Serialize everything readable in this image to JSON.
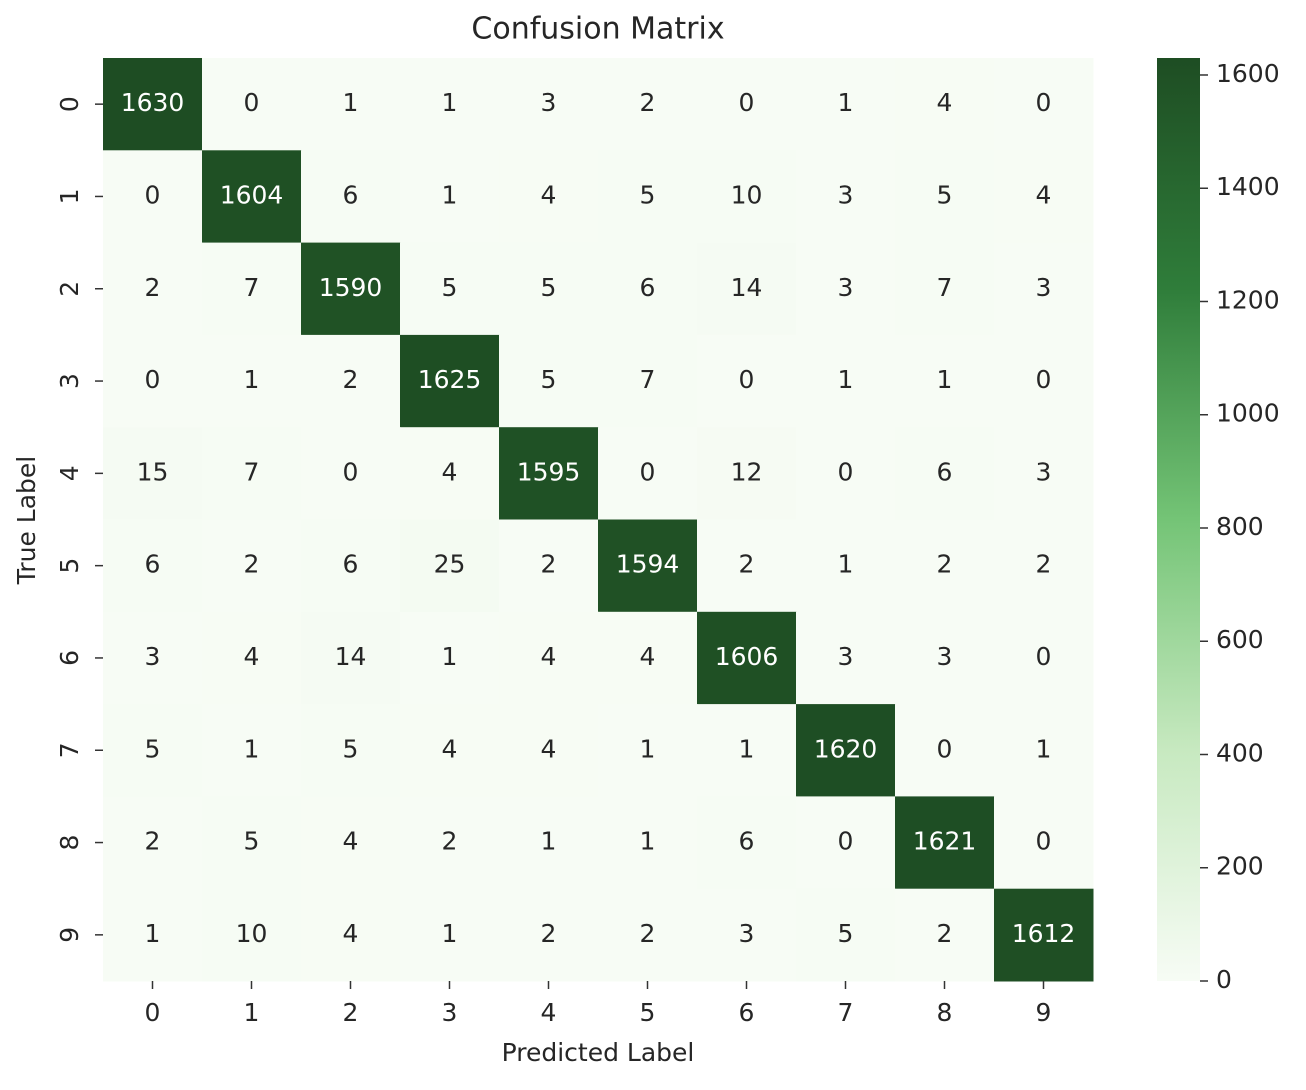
{
  "chart_data": {
    "type": "heatmap",
    "title": "Confusion Matrix",
    "xlabel": "Predicted Label",
    "ylabel": "True Label",
    "x_categories": [
      "0",
      "1",
      "2",
      "3",
      "4",
      "5",
      "6",
      "7",
      "8",
      "9"
    ],
    "y_categories": [
      "0",
      "1",
      "2",
      "3",
      "4",
      "5",
      "6",
      "7",
      "8",
      "9"
    ],
    "values": [
      [
        1630,
        0,
        1,
        1,
        3,
        2,
        0,
        1,
        4,
        0
      ],
      [
        0,
        1604,
        6,
        1,
        4,
        5,
        10,
        3,
        5,
        4
      ],
      [
        2,
        7,
        1590,
        5,
        5,
        6,
        14,
        3,
        7,
        3
      ],
      [
        0,
        1,
        2,
        1625,
        5,
        7,
        0,
        1,
        1,
        0
      ],
      [
        15,
        7,
        0,
        4,
        1595,
        0,
        12,
        0,
        6,
        3
      ],
      [
        6,
        2,
        6,
        25,
        2,
        1594,
        2,
        1,
        2,
        2
      ],
      [
        3,
        4,
        14,
        1,
        4,
        4,
        1606,
        3,
        3,
        0
      ],
      [
        5,
        1,
        5,
        4,
        4,
        1,
        1,
        1620,
        0,
        1
      ],
      [
        2,
        5,
        4,
        2,
        1,
        1,
        6,
        0,
        1621,
        0
      ],
      [
        1,
        10,
        4,
        1,
        2,
        2,
        3,
        5,
        2,
        1612
      ]
    ],
    "colormap": [
      "#f7fcf5",
      "#c7e9c0",
      "#74c476",
      "#2f7d3a",
      "#1e4d23"
    ],
    "zlim": [
      0,
      1630
    ],
    "zticks": [
      0,
      200,
      400,
      600,
      800,
      1000,
      1200,
      1400,
      1600
    ]
  }
}
